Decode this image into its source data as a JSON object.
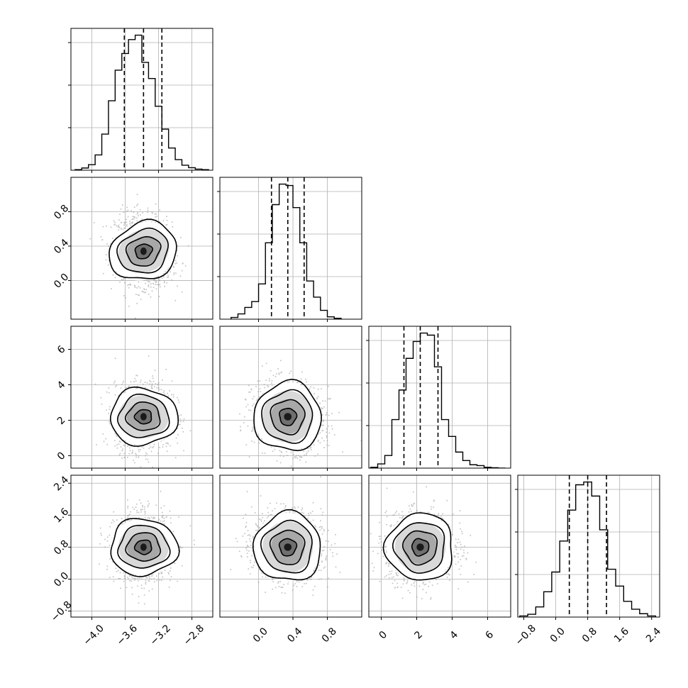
{
  "chart_data": {
    "type": "corner",
    "parameters": 4,
    "grid": true,
    "axis_labels": [
      "",
      "",
      "",
      ""
    ],
    "ranges": [
      [
        -4.25,
        -2.55
      ],
      [
        -0.45,
        1.2
      ],
      [
        -0.7,
        7.3
      ],
      [
        -0.95,
        2.6
      ]
    ],
    "ticks": [
      [
        -4.0,
        -3.6,
        -3.2,
        -2.8
      ],
      [
        0.0,
        0.4,
        0.8
      ],
      [
        0,
        2,
        4,
        6
      ],
      [
        -0.8,
        0.0,
        0.8,
        1.6,
        2.4
      ]
    ],
    "tick_labels": [
      [
        "−4.0",
        "−3.6",
        "−3.2",
        "−2.8"
      ],
      [
        "0.0",
        "0.4",
        "0.8"
      ],
      [
        "0",
        "2",
        "4",
        "6"
      ],
      [
        "−0.8",
        "0.0",
        "0.8",
        "1.6",
        "2.4"
      ]
    ],
    "quantiles": [
      [
        -3.61,
        -3.38,
        -3.16
      ],
      [
        0.15,
        0.34,
        0.53
      ],
      [
        1.28,
        2.2,
        3.2
      ],
      [
        0.34,
        0.8,
        1.27
      ]
    ],
    "marginals": [
      {
        "bins": [
          -4.2,
          -4.12,
          -4.04,
          -3.96,
          -3.88,
          -3.8,
          -3.72,
          -3.64,
          -3.56,
          -3.48,
          -3.4,
          -3.32,
          -3.24,
          -3.16,
          -3.08,
          -3.0,
          -2.92,
          -2.84,
          -2.76,
          -2.68,
          -2.6
        ],
        "counts": [
          2,
          8,
          20,
          55,
          130,
          250,
          360,
          420,
          470,
          486,
          388,
          330,
          230,
          148,
          80,
          38,
          18,
          9,
          4,
          2
        ]
      },
      {
        "bins": [
          -0.32,
          -0.24,
          -0.16,
          -0.08,
          0.0,
          0.08,
          0.16,
          0.24,
          0.32,
          0.4,
          0.48,
          0.56,
          0.64,
          0.72,
          0.8,
          0.88,
          0.96
        ],
        "counts": [
          6,
          18,
          40,
          60,
          120,
          260,
          390,
          460,
          455,
          380,
          260,
          130,
          75,
          30,
          8,
          3
        ]
      },
      {
        "bins": [
          -0.6,
          -0.2,
          0.2,
          0.6,
          1.0,
          1.4,
          1.8,
          2.2,
          2.6,
          3.0,
          3.4,
          3.8,
          4.2,
          4.6,
          5.0,
          5.4,
          5.8,
          6.2,
          6.6,
          7.0
        ],
        "counts": [
          2,
          10,
          30,
          115,
          185,
          260,
          300,
          320,
          315,
          240,
          115,
          75,
          38,
          18,
          8,
          6,
          2,
          1,
          0
        ]
      },
      {
        "bins": [
          -0.9,
          -0.7,
          -0.5,
          -0.3,
          -0.1,
          0.1,
          0.3,
          0.5,
          0.7,
          0.9,
          1.1,
          1.3,
          1.5,
          1.7,
          1.9,
          2.1,
          2.3,
          2.5
        ],
        "counts": [
          2,
          5,
          18,
          45,
          80,
          135,
          190,
          235,
          240,
          215,
          155,
          85,
          55,
          28,
          14,
          6,
          2
        ]
      }
    ],
    "centers": [
      -3.38,
      0.34,
      2.2,
      0.8
    ],
    "stds": [
      0.17,
      0.2,
      0.95,
      0.42
    ],
    "pair_correlations": {
      "1-0": -0.15,
      "2-0": 0.05,
      "2-1": -0.12,
      "3-0": 0.02,
      "3-1": -0.05,
      "3-2": 0.03
    },
    "contour_levels": [
      0.118,
      0.393,
      0.675,
      0.865
    ]
  }
}
